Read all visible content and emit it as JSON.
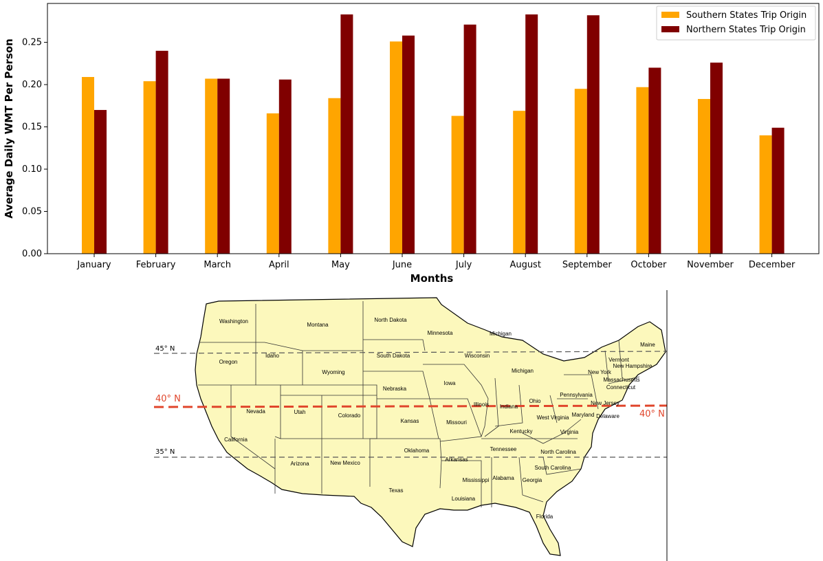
{
  "chart_data": {
    "type": "bar",
    "categories": [
      "January",
      "February",
      "March",
      "April",
      "May",
      "June",
      "July",
      "August",
      "September",
      "October",
      "November",
      "December"
    ],
    "series": [
      {
        "name": "Southern States Trip Origin",
        "color": "#ffa500",
        "values": [
          0.209,
          0.204,
          0.207,
          0.166,
          0.184,
          0.251,
          0.163,
          0.169,
          0.195,
          0.197,
          0.183,
          0.14
        ]
      },
      {
        "name": "Northern States Trip Origin",
        "color": "#800000",
        "values": [
          0.17,
          0.24,
          0.207,
          0.206,
          0.283,
          0.258,
          0.271,
          0.283,
          0.282,
          0.22,
          0.226,
          0.149
        ]
      }
    ],
    "xlabel": "Months",
    "ylabel": "Average Daily WMT Per Person",
    "ylim": [
      0,
      0.296
    ],
    "yticks": [
      "0.00",
      "0.05",
      "0.10",
      "0.15",
      "0.20",
      "0.25"
    ],
    "legend_position": "top-right",
    "grid": false
  },
  "map": {
    "latitude_labels": {
      "n45": "45° N",
      "n40_left": "40° N",
      "n40_right": "40° N",
      "n35": "35° N"
    },
    "land_color": "#fcf8bc",
    "highlight_color": "#e0452b",
    "states": [
      {
        "name": "Washington"
      },
      {
        "name": "Montana"
      },
      {
        "name": "North Dakota"
      },
      {
        "name": "Minnesota"
      },
      {
        "name": "Michigan"
      },
      {
        "name": "Maine"
      },
      {
        "name": "Idaho"
      },
      {
        "name": "Oregon"
      },
      {
        "name": "South Dakota"
      },
      {
        "name": "Wisconsin"
      },
      {
        "name": "Vermont"
      },
      {
        "name": "New Hampshire"
      },
      {
        "name": "Wyoming"
      },
      {
        "name": "Michigan"
      },
      {
        "name": "New York"
      },
      {
        "name": "Massachusetts"
      },
      {
        "name": "Connecticut"
      },
      {
        "name": "Iowa"
      },
      {
        "name": "Nebraska"
      },
      {
        "name": "Pennsylvania"
      },
      {
        "name": "Ohio"
      },
      {
        "name": "New Jersey"
      },
      {
        "name": "Nevada"
      },
      {
        "name": "Utah"
      },
      {
        "name": "Colorado"
      },
      {
        "name": "Illinois"
      },
      {
        "name": "Indiana"
      },
      {
        "name": "Maryland"
      },
      {
        "name": "Delaware"
      },
      {
        "name": "West Virginia"
      },
      {
        "name": "Kansas"
      },
      {
        "name": "Missouri"
      },
      {
        "name": "Virginia"
      },
      {
        "name": "Kentucky"
      },
      {
        "name": "California"
      },
      {
        "name": "Tennessee"
      },
      {
        "name": "North Carolina"
      },
      {
        "name": "Oklahoma"
      },
      {
        "name": "Arizona"
      },
      {
        "name": "New Mexico"
      },
      {
        "name": "Arkansas"
      },
      {
        "name": "South Carolina"
      },
      {
        "name": "Mississippi"
      },
      {
        "name": "Alabama"
      },
      {
        "name": "Georgia"
      },
      {
        "name": "Texas"
      },
      {
        "name": "Louisiana"
      },
      {
        "name": "Florida"
      }
    ]
  }
}
